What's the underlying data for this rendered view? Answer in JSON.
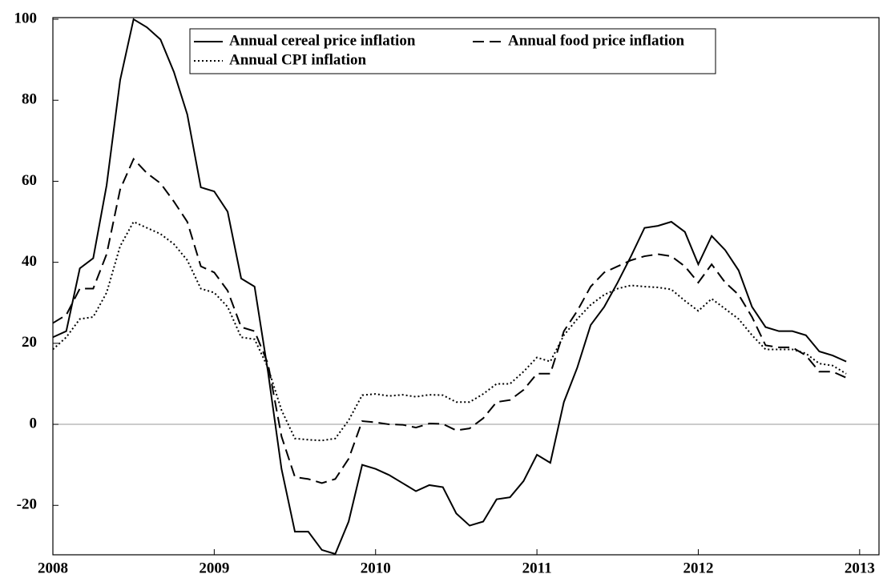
{
  "chart_data": {
    "type": "line",
    "x": [
      2008,
      2008.083,
      2008.167,
      2008.25,
      2008.333,
      2008.417,
      2008.5,
      2008.583,
      2008.667,
      2008.75,
      2008.833,
      2008.917,
      2009,
      2009.083,
      2009.167,
      2009.25,
      2009.333,
      2009.417,
      2009.5,
      2009.583,
      2009.667,
      2009.75,
      2009.833,
      2009.917,
      2010,
      2010.083,
      2010.167,
      2010.25,
      2010.333,
      2010.417,
      2010.5,
      2010.583,
      2010.667,
      2010.75,
      2010.833,
      2010.917,
      2011,
      2011.083,
      2011.167,
      2011.25,
      2011.333,
      2011.417,
      2011.5,
      2011.583,
      2011.667,
      2011.75,
      2011.833,
      2011.917,
      2012,
      2012.083,
      2012.167,
      2012.25,
      2012.333,
      2012.417,
      2012.5,
      2012.583,
      2012.667,
      2012.75,
      2012.833,
      2012.917
    ],
    "series": [
      {
        "name": "Annual cereal price inflation",
        "color": "#000000",
        "dash": "solid",
        "values": [
          21.5,
          23,
          38.5,
          41,
          59,
          85,
          100,
          98,
          95,
          87,
          76.5,
          58.5,
          57.5,
          52.5,
          36,
          34,
          13,
          -11,
          -26.5,
          -26.5,
          -31,
          -32,
          -24,
          -10,
          -11,
          -12.5,
          -14.5,
          -16.5,
          -15,
          -15.5,
          -22,
          -25,
          -24,
          -18.5,
          -18,
          -14,
          -7.5,
          -9.5,
          5.5,
          14,
          24.5,
          29,
          35,
          41.5,
          48.5,
          49,
          50,
          47.5,
          39.5,
          46.5,
          43,
          38,
          29,
          24,
          23,
          23,
          22,
          18,
          17,
          15.5
        ]
      },
      {
        "name": "Annual food price inflation",
        "color": "#000000",
        "dash": "dashed",
        "values": [
          25,
          27,
          33.5,
          33.5,
          42,
          58,
          65.5,
          62,
          59.5,
          55,
          50,
          39,
          37.5,
          33,
          24,
          23,
          15,
          -3,
          -13,
          -13.5,
          -14.5,
          -13.5,
          -8.5,
          0.8,
          0.5,
          0,
          -0.1,
          -0.8,
          0.2,
          0.1,
          -1.5,
          -1,
          1.5,
          5.5,
          6,
          8.5,
          12.5,
          12.5,
          23,
          28,
          34,
          37.5,
          39,
          40.5,
          41.5,
          42,
          41.5,
          39,
          35,
          39.5,
          35,
          32,
          26.5,
          19.5,
          19,
          19,
          17,
          13,
          13,
          11.5
        ]
      },
      {
        "name": "Annual CPI inflation",
        "color": "#000000",
        "dash": "dotted",
        "values": [
          18.5,
          21.5,
          26,
          26.5,
          32.5,
          44,
          50,
          48.5,
          47,
          44.5,
          40.5,
          33.5,
          32.5,
          29,
          21.5,
          21,
          14,
          3.5,
          -3.5,
          -3.8,
          -4,
          -3.5,
          1,
          7.2,
          7.5,
          7,
          7.3,
          6.8,
          7.3,
          7.2,
          5.5,
          5.5,
          7.5,
          10,
          10,
          13,
          16.5,
          15.5,
          22,
          26,
          29.5,
          32,
          33.5,
          34.3,
          34,
          33.8,
          33.3,
          30.5,
          28,
          31,
          28.5,
          26,
          22,
          18.5,
          18.5,
          18.5,
          17.5,
          15,
          14.5,
          12.5
        ]
      }
    ],
    "xlim": [
      2008,
      2013.12
    ],
    "xticks": [
      2008,
      2009,
      2010,
      2011,
      2012,
      2013
    ],
    "ylim": [
      -32.2,
      100.4
    ],
    "yticks": [
      -20,
      0,
      20,
      40,
      60,
      80,
      100
    ],
    "hline": 0,
    "legend": "top"
  }
}
